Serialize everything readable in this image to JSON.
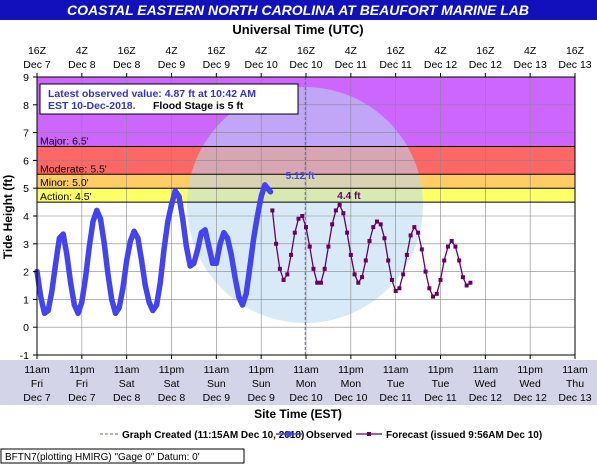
{
  "header": {
    "title": "COASTAL EASTERN NORTH CAROLINA AT BEAUFORT MARINE LAB",
    "top_axis_title": "Universal Time (UTC)"
  },
  "colors": {
    "title_bar": "#1111bb",
    "major": "#cc66ff",
    "moderate": "#ff6666",
    "minor": "#ffcc66",
    "action": "#ffff66",
    "observed": "#4444ee",
    "forecast": "#660066",
    "site_band": "#d4d4e8"
  },
  "chart_data": {
    "type": "line",
    "ylabel": "Tide Height (ft)",
    "xlabel": "Site Time (EST)",
    "ylim": [
      -1,
      9
    ],
    "y_ticks": [
      "-1",
      "0",
      "1",
      "2",
      "3",
      "4",
      "5",
      "6",
      "7",
      "8",
      "9"
    ],
    "grid": true,
    "flood_categories": [
      {
        "name": "Major",
        "label": "Major: 6.5'",
        "value": 6.5
      },
      {
        "name": "Moderate",
        "label": "Moderate: 5.5'",
        "value": 5.5
      },
      {
        "name": "Minor",
        "label": "Minor: 5.0'",
        "value": 5.0
      },
      {
        "name": "Action",
        "label": "Action: 4.5'",
        "value": 4.5
      }
    ],
    "info_box": {
      "line1": "Latest observed value: 4.87 ft at 10:42 AM",
      "line2a": "EST 10-Dec-2018.",
      "line2b": "Flood Stage is 5 ft"
    },
    "annotations": [
      {
        "text": "5.12 ft",
        "x": 71.5,
        "y": 5.12,
        "series": "observed"
      },
      {
        "text": "4.4 ft",
        "x": 83.5,
        "y": 4.4,
        "series": "forecast"
      }
    ],
    "x_unit": "hours since Dec 7 11am EST",
    "x_range": [
      0,
      144
    ],
    "bottom_ticks": [
      {
        "x": 0,
        "time": "11am",
        "day": "Fri",
        "date": "Dec 7"
      },
      {
        "x": 12,
        "time": "11pm",
        "day": "Fri",
        "date": "Dec 7"
      },
      {
        "x": 24,
        "time": "11am",
        "day": "Sat",
        "date": "Dec 8"
      },
      {
        "x": 36,
        "time": "11pm",
        "day": "Sat",
        "date": "Dec 8"
      },
      {
        "x": 48,
        "time": "11am",
        "day": "Sun",
        "date": "Dec 9"
      },
      {
        "x": 60,
        "time": "11pm",
        "day": "Sun",
        "date": "Dec 9"
      },
      {
        "x": 72,
        "time": "11am",
        "day": "Mon",
        "date": "Dec 10"
      },
      {
        "x": 84,
        "time": "11pm",
        "day": "Mon",
        "date": "Dec 10"
      },
      {
        "x": 96,
        "time": "11am",
        "day": "Tue",
        "date": "Dec 11"
      },
      {
        "x": 108,
        "time": "11pm",
        "day": "Tue",
        "date": "Dec 11"
      },
      {
        "x": 120,
        "time": "11am",
        "day": "Wed",
        "date": "Dec 12"
      },
      {
        "x": 132,
        "time": "11pm",
        "day": "Wed",
        "date": "Dec 12"
      },
      {
        "x": 144,
        "time": "11am",
        "day": "Thu",
        "date": "Dec 13"
      }
    ],
    "top_ticks": [
      {
        "x": 0,
        "time": "16Z",
        "date": "Dec 7"
      },
      {
        "x": 12,
        "time": "4Z",
        "date": "Dec 8"
      },
      {
        "x": 24,
        "time": "16Z",
        "date": "Dec 8"
      },
      {
        "x": 36,
        "time": "4Z",
        "date": "Dec 9"
      },
      {
        "x": 48,
        "time": "16Z",
        "date": "Dec 9"
      },
      {
        "x": 60,
        "time": "4Z",
        "date": "Dec 10"
      },
      {
        "x": 72,
        "time": "16Z",
        "date": "Dec 10"
      },
      {
        "x": 84,
        "time": "4Z",
        "date": "Dec 11"
      },
      {
        "x": 96,
        "time": "16Z",
        "date": "Dec 11"
      },
      {
        "x": 108,
        "time": "4Z",
        "date": "Dec 12"
      },
      {
        "x": 120,
        "time": "16Z",
        "date": "Dec 12"
      },
      {
        "x": 132,
        "time": "4Z",
        "date": "Dec 13"
      },
      {
        "x": 144,
        "time": "16Z",
        "date": "Dec 13"
      }
    ],
    "graph_created_x": 71.8,
    "series": [
      {
        "name": "Observed",
        "points": [
          [
            0,
            2.0
          ],
          [
            1,
            1.1
          ],
          [
            2,
            0.5
          ],
          [
            3,
            0.6
          ],
          [
            4,
            1.3
          ],
          [
            5,
            2.3
          ],
          [
            6,
            3.2
          ],
          [
            7,
            3.35
          ],
          [
            8,
            2.6
          ],
          [
            9,
            1.6
          ],
          [
            10,
            0.8
          ],
          [
            11,
            0.5
          ],
          [
            12,
            0.9
          ],
          [
            13,
            1.8
          ],
          [
            14,
            2.9
          ],
          [
            15,
            3.8
          ],
          [
            16,
            4.2
          ],
          [
            17,
            3.9
          ],
          [
            18,
            3.0
          ],
          [
            19,
            1.9
          ],
          [
            20,
            1.0
          ],
          [
            21,
            0.5
          ],
          [
            22,
            0.7
          ],
          [
            23,
            1.4
          ],
          [
            24,
            2.4
          ],
          [
            25,
            3.1
          ],
          [
            26,
            3.45
          ],
          [
            27,
            3.2
          ],
          [
            28,
            2.4
          ],
          [
            29,
            1.5
          ],
          [
            30,
            0.9
          ],
          [
            31,
            0.6
          ],
          [
            32,
            0.8
          ],
          [
            33,
            1.6
          ],
          [
            34,
            2.8
          ],
          [
            35,
            3.8
          ],
          [
            36,
            4.4
          ],
          [
            37,
            4.9
          ],
          [
            38,
            4.7
          ],
          [
            39,
            3.9
          ],
          [
            40,
            2.9
          ],
          [
            41,
            2.2
          ],
          [
            42,
            2.3
          ],
          [
            43,
            2.8
          ],
          [
            44,
            3.4
          ],
          [
            45,
            3.5
          ],
          [
            46,
            2.9
          ],
          [
            47,
            2.3
          ],
          [
            48,
            2.3
          ],
          [
            49,
            3.0
          ],
          [
            50,
            3.4
          ],
          [
            51,
            3.2
          ],
          [
            52,
            2.6
          ],
          [
            53,
            1.8
          ],
          [
            54,
            1.1
          ],
          [
            55,
            0.8
          ],
          [
            56,
            1.2
          ],
          [
            57,
            2.2
          ],
          [
            58,
            3.2
          ],
          [
            59,
            4.0
          ],
          [
            60,
            4.7
          ],
          [
            61,
            5.12
          ],
          [
            62,
            4.95
          ],
          [
            62.5,
            4.87
          ]
        ]
      },
      {
        "name": "Forecast (issued 9:56AM Dec 10)",
        "points": [
          [
            63,
            4.2
          ],
          [
            64,
            3.0
          ],
          [
            65,
            2.1
          ],
          [
            66,
            1.7
          ],
          [
            67,
            1.9
          ],
          [
            68,
            2.6
          ],
          [
            69,
            3.4
          ],
          [
            70,
            3.9
          ],
          [
            71,
            4.0
          ],
          [
            72,
            3.6
          ],
          [
            73,
            2.9
          ],
          [
            74,
            2.1
          ],
          [
            75,
            1.6
          ],
          [
            76,
            1.6
          ],
          [
            77,
            2.1
          ],
          [
            78,
            2.9
          ],
          [
            79,
            3.7
          ],
          [
            80,
            4.2
          ],
          [
            81,
            4.4
          ],
          [
            82,
            4.1
          ],
          [
            83,
            3.4
          ],
          [
            84,
            2.6
          ],
          [
            85,
            1.9
          ],
          [
            86,
            1.6
          ],
          [
            87,
            1.8
          ],
          [
            88,
            2.4
          ],
          [
            89,
            3.1
          ],
          [
            90,
            3.6
          ],
          [
            91,
            3.8
          ],
          [
            92,
            3.7
          ],
          [
            93,
            3.2
          ],
          [
            94,
            2.4
          ],
          [
            95,
            1.7
          ],
          [
            96,
            1.3
          ],
          [
            97,
            1.4
          ],
          [
            98,
            1.9
          ],
          [
            99,
            2.6
          ],
          [
            100,
            3.3
          ],
          [
            101,
            3.6
          ],
          [
            102,
            3.4
          ],
          [
            103,
            2.8
          ],
          [
            104,
            2.0
          ],
          [
            105,
            1.4
          ],
          [
            106,
            1.1
          ],
          [
            107,
            1.2
          ],
          [
            108,
            1.7
          ],
          [
            109,
            2.4
          ],
          [
            110,
            2.9
          ],
          [
            111,
            3.1
          ],
          [
            112,
            2.9
          ],
          [
            113,
            2.4
          ],
          [
            114,
            1.8
          ],
          [
            115,
            1.5
          ],
          [
            116,
            1.6
          ]
        ]
      }
    ]
  },
  "legend": {
    "graph_created": "Graph Created (11:15AM Dec 10, 2018)",
    "observed": "Observed",
    "forecast": "Forecast (issued 9:56AM Dec 10)"
  },
  "footer": {
    "text": "BFTN7(plotting HMIRG) \"Gage 0\" Datum: 0'"
  }
}
